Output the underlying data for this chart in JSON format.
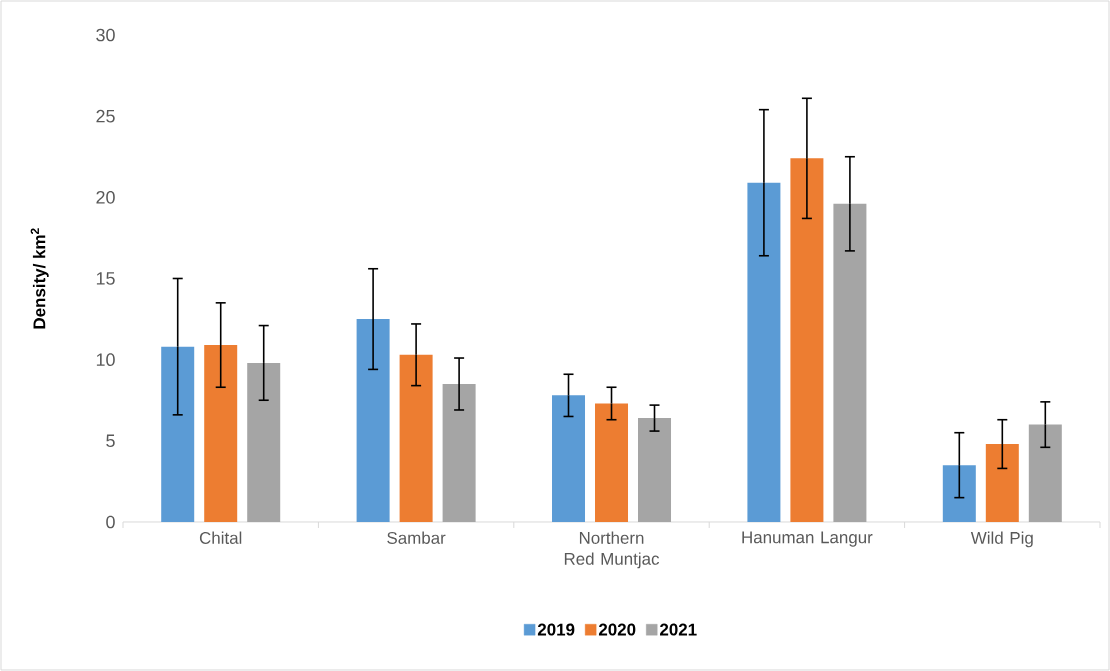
{
  "chart_data": {
    "type": "bar",
    "ylabel": "Density/ km$^{2}$",
    "categories": [
      "Chital",
      "Sambar",
      "Northern Red Muntjac",
      "Hanuman Langur",
      "Wild Pig"
    ],
    "series": [
      {
        "name": "2019",
        "color": "#5b9bd5",
        "values": [
          10.8,
          12.5,
          7.8,
          20.9,
          3.5
        ],
        "errors": [
          4.2,
          3.1,
          1.3,
          4.5,
          2.0
        ]
      },
      {
        "name": "2020",
        "color": "#ed7d31",
        "values": [
          10.9,
          10.3,
          7.3,
          22.4,
          4.8
        ],
        "errors": [
          2.6,
          1.9,
          1.0,
          3.7,
          1.5
        ]
      },
      {
        "name": "2021",
        "color": "#a5a5a5",
        "values": [
          9.8,
          8.5,
          6.4,
          19.6,
          6.0
        ],
        "errors": [
          2.3,
          1.6,
          0.8,
          2.9,
          1.4
        ]
      }
    ],
    "ylim": [
      0,
      30
    ],
    "yticks": [
      0,
      5,
      10,
      15,
      20,
      25,
      30
    ],
    "grid": false,
    "legend": "bottom"
  }
}
